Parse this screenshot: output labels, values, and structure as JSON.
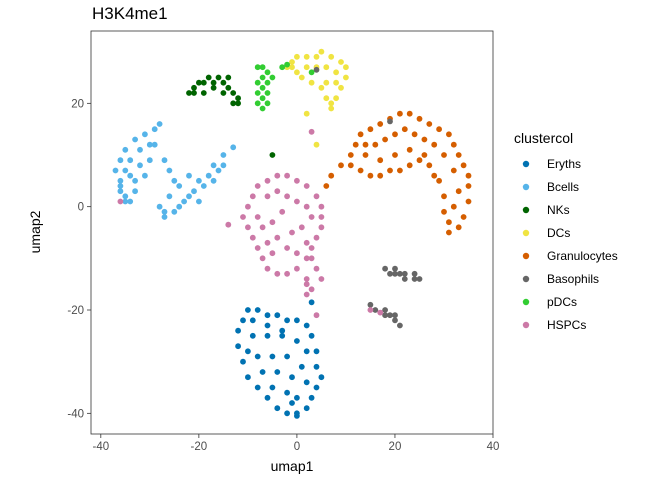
{
  "chart_data": {
    "type": "scatter",
    "title": "H3K4me1",
    "xlabel": "umap1",
    "ylabel": "umap2",
    "xlim": [
      -42,
      40
    ],
    "ylim": [
      -44,
      34
    ],
    "x_ticks": [
      -40,
      -20,
      0,
      20,
      40
    ],
    "y_ticks": [
      -40,
      -20,
      0,
      20
    ],
    "grid": false,
    "legend": {
      "title": "clustercol",
      "placement": "right",
      "entries": [
        {
          "name": "Eryths",
          "color": "#0072B2"
        },
        {
          "name": "Bcells",
          "color": "#56B4E9"
        },
        {
          "name": "NKs",
          "color": "#006400"
        },
        {
          "name": "DCs",
          "color": "#F0E442"
        },
        {
          "name": "Granulocytes",
          "color": "#D55E00"
        },
        {
          "name": "Basophils",
          "color": "#666666"
        },
        {
          "name": "pDCs",
          "color": "#32CD32"
        },
        {
          "name": "HSPCs",
          "color": "#CC79A7"
        }
      ]
    },
    "series": [
      {
        "name": "Eryths",
        "color": "#0072B2",
        "points": [
          [
            -12,
            -24
          ],
          [
            -11,
            -22
          ],
          [
            -10,
            -20
          ],
          [
            -8,
            -20
          ],
          [
            -6,
            -21
          ],
          [
            -4,
            -21
          ],
          [
            -2,
            -22
          ],
          [
            0,
            -22
          ],
          [
            2,
            -23
          ],
          [
            3,
            -25
          ],
          [
            4,
            -28
          ],
          [
            4,
            -31
          ],
          [
            5,
            -33
          ],
          [
            4,
            -35
          ],
          [
            3,
            -37
          ],
          [
            2,
            -39
          ],
          [
            0,
            -40
          ],
          [
            -2,
            -40
          ],
          [
            -4,
            -39
          ],
          [
            -6,
            -37
          ],
          [
            -8,
            -35
          ],
          [
            -10,
            -33
          ],
          [
            -11,
            -30
          ],
          [
            -12,
            -27
          ],
          [
            -9,
            -25
          ],
          [
            -6,
            -25
          ],
          [
            -3,
            -25
          ],
          [
            0,
            -26
          ],
          [
            2,
            -28
          ],
          [
            -8,
            -29
          ],
          [
            -5,
            -29
          ],
          [
            -2,
            -29
          ],
          [
            1,
            -31
          ],
          [
            -7,
            -32
          ],
          [
            -4,
            -32
          ],
          [
            -1,
            -33
          ],
          [
            2,
            -34
          ],
          [
            -5,
            -35
          ],
          [
            -2,
            -36
          ],
          [
            0,
            -37
          ],
          [
            -9,
            -22
          ],
          [
            -6,
            -23
          ],
          [
            -3,
            -24
          ],
          [
            -10,
            -28
          ],
          [
            -1,
            -38
          ],
          [
            3,
            -18.5
          ],
          [
            0,
            -40.5
          ]
        ]
      },
      {
        "name": "Bcells",
        "color": "#56B4E9",
        "points": [
          [
            -36,
            5
          ],
          [
            -37,
            7
          ],
          [
            -36,
            9
          ],
          [
            -35,
            11
          ],
          [
            -33,
            13
          ],
          [
            -31,
            14
          ],
          [
            -29,
            15
          ],
          [
            -28,
            16
          ],
          [
            -29,
            12
          ],
          [
            -30,
            9
          ],
          [
            -31,
            6
          ],
          [
            -33,
            3
          ],
          [
            -35,
            2
          ],
          [
            -36,
            4
          ],
          [
            -34,
            6
          ],
          [
            -32,
            8
          ],
          [
            -32,
            11
          ],
          [
            -34,
            9
          ],
          [
            -30,
            12
          ],
          [
            -35,
            7
          ],
          [
            -33,
            5
          ],
          [
            -36,
            3
          ],
          [
            -34,
            1
          ],
          [
            -27,
            9
          ],
          [
            -26,
            7
          ],
          [
            -25,
            5
          ],
          [
            -24,
            4
          ],
          [
            -22,
            6
          ],
          [
            -21,
            3
          ],
          [
            -23,
            1
          ],
          [
            -25,
            -1
          ],
          [
            -27,
            -2
          ],
          [
            -28,
            0
          ],
          [
            -26,
            2
          ],
          [
            -20,
            1
          ],
          [
            -19,
            4
          ],
          [
            -17,
            5
          ],
          [
            -16,
            7
          ],
          [
            -15,
            8
          ],
          [
            -15,
            10
          ],
          [
            -17,
            8
          ],
          [
            -18,
            6
          ],
          [
            -20,
            5
          ],
          [
            -22,
            2
          ],
          [
            -24,
            0
          ],
          [
            -27,
            -1
          ],
          [
            -13,
            11.5
          ],
          [
            -35,
            1
          ]
        ]
      },
      {
        "name": "NKs",
        "color": "#006400",
        "points": [
          [
            -22,
            22
          ],
          [
            -21,
            23
          ],
          [
            -19,
            24
          ],
          [
            -17,
            24
          ],
          [
            -15,
            24
          ],
          [
            -14,
            23
          ],
          [
            -13,
            22
          ],
          [
            -12,
            21
          ],
          [
            -13,
            20
          ],
          [
            -15,
            22
          ],
          [
            -17,
            23
          ],
          [
            -19,
            22
          ],
          [
            -21,
            22
          ],
          [
            -16,
            25
          ],
          [
            -18,
            25
          ],
          [
            -14,
            25
          ],
          [
            -20,
            24
          ],
          [
            -12,
            20
          ],
          [
            -5,
            10
          ]
        ]
      },
      {
        "name": "DCs",
        "color": "#F0E442",
        "points": [
          [
            -1,
            28
          ],
          [
            0,
            29
          ],
          [
            2,
            29
          ],
          [
            4,
            29
          ],
          [
            5,
            30
          ],
          [
            7,
            29
          ],
          [
            9,
            28
          ],
          [
            10,
            27
          ],
          [
            10,
            25
          ],
          [
            9,
            23
          ],
          [
            8,
            21
          ],
          [
            7,
            20
          ],
          [
            6,
            21
          ],
          [
            5,
            23
          ],
          [
            3,
            24
          ],
          [
            1,
            25
          ],
          [
            0,
            26
          ],
          [
            -1,
            27
          ],
          [
            2,
            27
          ],
          [
            4,
            27
          ],
          [
            6,
            27
          ],
          [
            8,
            26
          ],
          [
            6,
            24
          ],
          [
            8,
            24
          ],
          [
            2,
            18
          ],
          [
            4,
            12
          ],
          [
            -2,
            27
          ],
          [
            7,
            19
          ]
        ]
      },
      {
        "name": "Granulocytes",
        "color": "#D55E00",
        "points": [
          [
            11,
            10
          ],
          [
            12,
            12
          ],
          [
            13,
            14
          ],
          [
            15,
            15
          ],
          [
            17,
            16
          ],
          [
            19,
            17
          ],
          [
            21,
            18
          ],
          [
            23,
            18
          ],
          [
            25,
            17
          ],
          [
            27,
            16
          ],
          [
            29,
            15
          ],
          [
            31,
            14
          ],
          [
            32,
            12
          ],
          [
            33,
            10
          ],
          [
            34,
            8
          ],
          [
            35,
            6
          ],
          [
            35,
            4
          ],
          [
            35,
            1
          ],
          [
            34,
            -2
          ],
          [
            33,
            -4
          ],
          [
            31,
            -3
          ],
          [
            30,
            -1
          ],
          [
            30,
            2
          ],
          [
            29,
            5
          ],
          [
            27,
            8
          ],
          [
            25,
            9
          ],
          [
            23,
            8
          ],
          [
            21,
            7
          ],
          [
            19,
            7
          ],
          [
            17,
            6
          ],
          [
            15,
            6
          ],
          [
            13,
            7
          ],
          [
            11,
            8
          ],
          [
            14,
            10
          ],
          [
            16,
            12
          ],
          [
            18,
            13
          ],
          [
            20,
            14
          ],
          [
            22,
            15
          ],
          [
            24,
            14
          ],
          [
            26,
            13
          ],
          [
            28,
            12
          ],
          [
            30,
            10
          ],
          [
            32,
            7
          ],
          [
            33,
            3
          ],
          [
            32,
            0
          ],
          [
            31,
            -5
          ],
          [
            20,
            10
          ],
          [
            23,
            11
          ],
          [
            26,
            10
          ],
          [
            28,
            6
          ],
          [
            17,
            9
          ],
          [
            14,
            12
          ],
          [
            9,
            8
          ],
          [
            7,
            6
          ],
          [
            6,
            4
          ]
        ]
      },
      {
        "name": "Basophils",
        "color": "#666666",
        "points": [
          [
            18,
            -12
          ],
          [
            19,
            -13
          ],
          [
            20,
            -13
          ],
          [
            21,
            -13
          ],
          [
            22,
            -14
          ],
          [
            24,
            -14
          ],
          [
            25,
            -14
          ],
          [
            24,
            -13
          ],
          [
            22,
            -13
          ],
          [
            20,
            -12
          ],
          [
            15,
            -19
          ],
          [
            16,
            -20
          ],
          [
            18,
            -20
          ],
          [
            19,
            -21
          ],
          [
            20,
            -22
          ],
          [
            21,
            -23
          ],
          [
            20,
            -21
          ],
          [
            18,
            -21
          ],
          [
            19,
            16.5
          ],
          [
            4,
            26.5
          ]
        ]
      },
      {
        "name": "pDCs",
        "color": "#32CD32",
        "points": [
          [
            -8,
            27
          ],
          [
            -7,
            27
          ],
          [
            -6,
            26
          ],
          [
            -5,
            25
          ],
          [
            -6,
            24
          ],
          [
            -7,
            23
          ],
          [
            -8,
            22
          ],
          [
            -7,
            21
          ],
          [
            -6,
            20
          ],
          [
            -7,
            19
          ],
          [
            -8,
            20
          ],
          [
            -8,
            24
          ],
          [
            -6,
            22
          ],
          [
            -7,
            25
          ],
          [
            -3,
            27
          ],
          [
            -2,
            27.5
          ],
          [
            3,
            26
          ]
        ]
      },
      {
        "name": "HSPCs",
        "color": "#CC79A7",
        "points": [
          [
            -6,
            5
          ],
          [
            -4,
            6
          ],
          [
            -2,
            6
          ],
          [
            0,
            5
          ],
          [
            2,
            4
          ],
          [
            4,
            2
          ],
          [
            5,
            0
          ],
          [
            5,
            -2
          ],
          [
            5,
            -4
          ],
          [
            4,
            -6
          ],
          [
            3,
            -8
          ],
          [
            2,
            -10
          ],
          [
            0,
            -12
          ],
          [
            -2,
            -13
          ],
          [
            -4,
            -13
          ],
          [
            -6,
            -12
          ],
          [
            -7,
            -10
          ],
          [
            -8,
            -8
          ],
          [
            -9,
            -6
          ],
          [
            -10,
            -4
          ],
          [
            -11,
            -2
          ],
          [
            -10,
            0
          ],
          [
            -9,
            2
          ],
          [
            -8,
            4
          ],
          [
            -6,
            2
          ],
          [
            -4,
            3
          ],
          [
            -2,
            2
          ],
          [
            0,
            1
          ],
          [
            2,
            0
          ],
          [
            3,
            -2
          ],
          [
            -3,
            -1
          ],
          [
            -5,
            -3
          ],
          [
            -7,
            -4
          ],
          [
            -4,
            -6
          ],
          [
            -1,
            -5
          ],
          [
            1,
            -4
          ],
          [
            -2,
            -8
          ],
          [
            -5,
            -9
          ],
          [
            0,
            -9
          ],
          [
            2,
            -7
          ],
          [
            -8,
            -2
          ],
          [
            -6,
            -7
          ],
          [
            3,
            -10
          ],
          [
            4,
            -12
          ],
          [
            5,
            -14
          ],
          [
            2,
            -14
          ],
          [
            3,
            -16
          ],
          [
            2,
            -17
          ],
          [
            -14,
            -3.5
          ],
          [
            -36,
            1
          ],
          [
            15,
            -20
          ],
          [
            17,
            -20.5
          ],
          [
            4,
            -21
          ],
          [
            3,
            14.5
          ],
          [
            2,
            -15
          ]
        ]
      }
    ]
  }
}
